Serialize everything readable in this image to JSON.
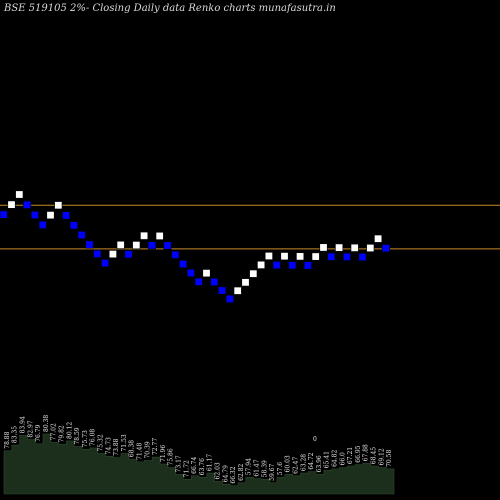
{
  "chart_data": {
    "type": "renko",
    "title": "BSE 519105 2%-  Closing Daily data  Renko  charts munafasutra.in",
    "colors": {
      "background": "#000000",
      "up_brick": "#ffffff",
      "down_brick": "#0000ff",
      "brick_border": "#000000",
      "reference_line": "#c88a28",
      "volume_fill": "#1c2e1c",
      "volume_stroke": "#2e4a2e",
      "label": "#e6e6e6"
    },
    "reference_lines": [
      82.4,
      75.3
    ],
    "bricks": [
      {
        "dir": "down",
        "price": 80.88
      },
      {
        "dir": "up",
        "price": 82.5
      },
      {
        "dir": "up",
        "price": 84.15
      },
      {
        "dir": "down",
        "price": 82.47
      },
      {
        "dir": "down",
        "price": 80.82
      },
      {
        "dir": "down",
        "price": 79.2
      },
      {
        "dir": "up",
        "price": 80.79
      },
      {
        "dir": "up",
        "price": 82.4
      },
      {
        "dir": "down",
        "price": 80.75
      },
      {
        "dir": "down",
        "price": 79.14
      },
      {
        "dir": "down",
        "price": 77.56
      },
      {
        "dir": "down",
        "price": 76.01
      },
      {
        "dir": "down",
        "price": 74.49
      },
      {
        "dir": "down",
        "price": 73.0
      },
      {
        "dir": "up",
        "price": 74.46
      },
      {
        "dir": "up",
        "price": 75.95
      },
      {
        "dir": "down",
        "price": 74.43
      },
      {
        "dir": "up",
        "price": 75.92
      },
      {
        "dir": "up",
        "price": 77.44
      },
      {
        "dir": "down",
        "price": 75.89
      },
      {
        "dir": "up",
        "price": 77.41
      },
      {
        "dir": "down",
        "price": 75.86
      },
      {
        "dir": "down",
        "price": 74.34
      },
      {
        "dir": "down",
        "price": 72.85
      },
      {
        "dir": "down",
        "price": 71.39
      },
      {
        "dir": "down",
        "price": 69.96
      },
      {
        "dir": "up",
        "price": 71.36
      },
      {
        "dir": "down",
        "price": 69.93
      },
      {
        "dir": "down",
        "price": 68.53
      },
      {
        "dir": "down",
        "price": 67.16
      },
      {
        "dir": "up",
        "price": 68.5
      },
      {
        "dir": "up",
        "price": 69.87
      },
      {
        "dir": "up",
        "price": 71.27
      },
      {
        "dir": "up",
        "price": 72.7
      },
      {
        "dir": "up",
        "price": 74.15
      },
      {
        "dir": "down",
        "price": 72.67
      },
      {
        "dir": "up",
        "price": 74.12
      },
      {
        "dir": "down",
        "price": 72.64
      },
      {
        "dir": "up",
        "price": 74.09
      },
      {
        "dir": "down",
        "price": 72.61
      },
      {
        "dir": "up",
        "price": 74.06
      },
      {
        "dir": "up",
        "price": 75.54
      },
      {
        "dir": "down",
        "price": 74.03
      },
      {
        "dir": "up",
        "price": 75.51
      },
      {
        "dir": "down",
        "price": 74.0
      },
      {
        "dir": "up",
        "price": 75.48
      },
      {
        "dir": "down",
        "price": 73.97
      },
      {
        "dir": "up",
        "price": 75.45
      },
      {
        "dir": "up",
        "price": 76.96
      },
      {
        "dir": "down",
        "price": 75.42
      }
    ],
    "volume": [
      62,
      70,
      84,
      78,
      72,
      86,
      74,
      71,
      76,
      68,
      64,
      66,
      58,
      54,
      52,
      58,
      50,
      46,
      48,
      53,
      43,
      38,
      28,
      21,
      26,
      24,
      30,
      18,
      14,
      12,
      16,
      24,
      22,
      21,
      16,
      24,
      28,
      26,
      30,
      32,
      28,
      34,
      36,
      38,
      40,
      42,
      44,
      40,
      38,
      36
    ],
    "price_labels": [
      "78.88",
      "83.35",
      "83.94",
      "82.97",
      "76.79",
      "80.38",
      "77.02",
      "79.82",
      "80.12",
      "78.59",
      "75.73",
      "76.08",
      "75.32",
      "74.73",
      "73.88",
      "71.53",
      "68.38",
      "71.48",
      "70.39",
      "72.77",
      "71.96",
      "75.86",
      "73.17",
      "71.72",
      "66.74",
      "63.76",
      "61.17",
      "62.03",
      "64.79",
      "66.32",
      "62.82",
      "57.94",
      "61.47",
      "58.39",
      "59.67",
      "57.6",
      "60.03",
      "62.47",
      "63.28",
      "64.72",
      "63.96",
      "65.41",
      "64.82",
      "66.0",
      "67.21",
      "66.95",
      "67.88",
      "68.45",
      "69.12",
      "70.58"
    ],
    "extra_label": "0"
  }
}
